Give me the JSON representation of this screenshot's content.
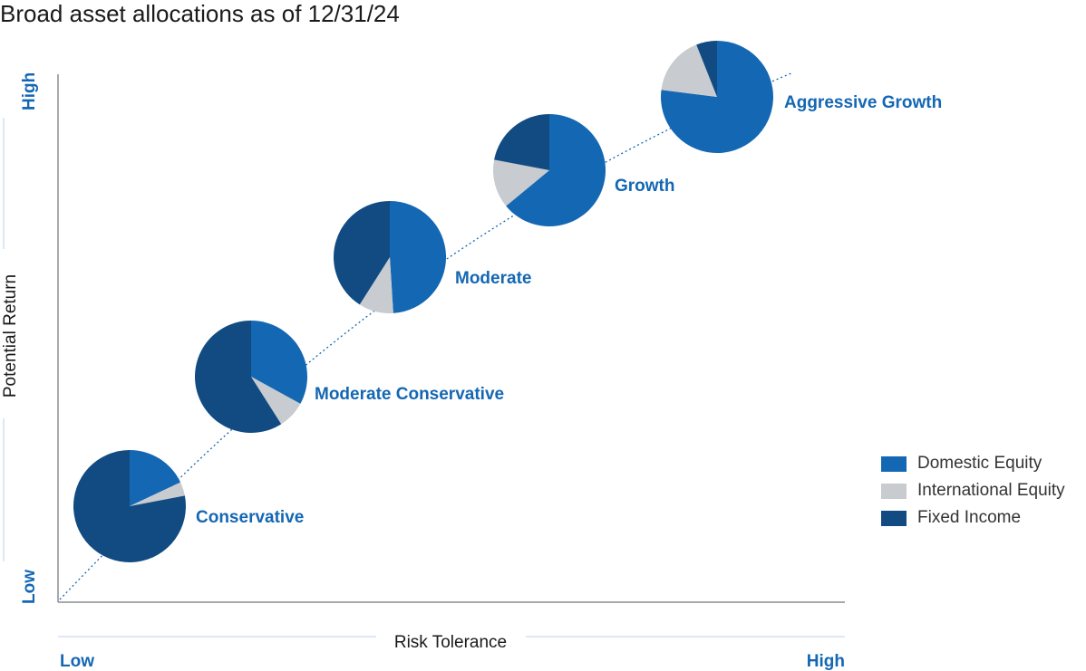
{
  "colors": {
    "domestic_equity": "#1467b3",
    "international_equity": "#c8cbcf",
    "fixed_income": "#124b82",
    "label": "#1467b3",
    "axis": "#8a8d91",
    "guide_line": "#b9d2ea",
    "text": "#1a1a1a"
  },
  "chart_data": {
    "type": "pie",
    "title": "Broad asset allocations as of 12/31/24",
    "xlabel": "Risk Tolerance",
    "ylabel": "Potential Return",
    "x_low_label": "Low",
    "x_high_label": "High",
    "y_low_label": "Low",
    "y_high_label": "High",
    "legend": [
      "Domestic Equity",
      "International Equity",
      "Fixed Income"
    ],
    "portfolios": [
      {
        "name": "Conservative",
        "values": [
          18,
          4,
          78
        ]
      },
      {
        "name": "Moderate Conservative",
        "values": [
          33,
          8,
          59
        ]
      },
      {
        "name": "Moderate",
        "values": [
          49,
          10,
          41
        ]
      },
      {
        "name": "Growth",
        "values": [
          64,
          14,
          22
        ]
      },
      {
        "name": "Aggressive Growth",
        "values": [
          77,
          17,
          6
        ]
      }
    ]
  }
}
